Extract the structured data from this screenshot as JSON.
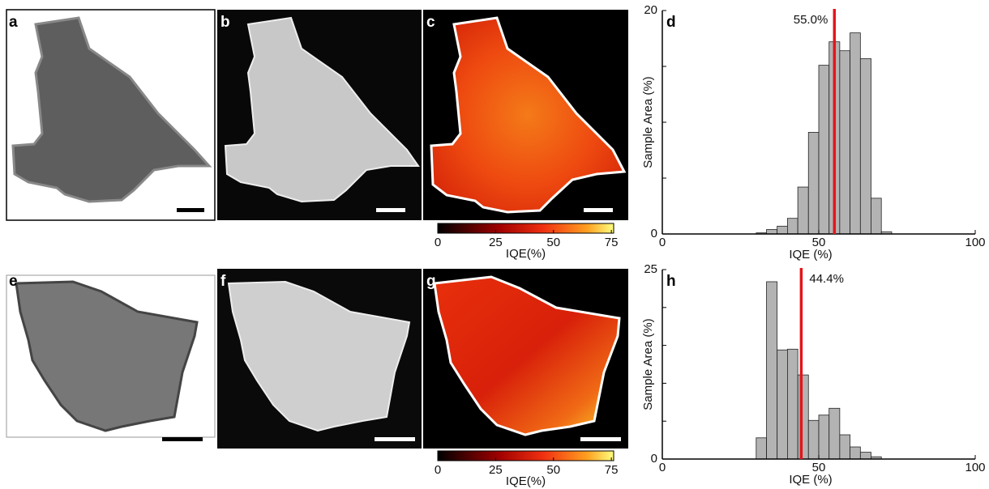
{
  "panels": [
    "a",
    "b",
    "c",
    "d",
    "e",
    "f",
    "g",
    "h"
  ],
  "colorbars": [
    {
      "label": "IQE(%)",
      "lim": [
        0,
        76
      ],
      "ticks": [
        0,
        25,
        50,
        75
      ]
    },
    {
      "label": "IQE(%)",
      "lim": [
        0,
        76
      ],
      "ticks": [
        0,
        25,
        50,
        75
      ]
    }
  ],
  "chart_data": [
    {
      "type": "histogram",
      "xlabel": "IQE (%)",
      "ylabel": "Sample Area (%)",
      "color": "#b3b3b3",
      "bins": [
        30,
        33.3,
        36.7,
        40,
        43.3,
        46.7,
        50,
        53.3,
        56.7,
        60,
        63.3,
        66.7,
        70,
        73.3
      ],
      "counts": [
        0.1,
        0.4,
        0.7,
        1.4,
        4.2,
        9.1,
        15.1,
        17.2,
        16.4,
        18.0,
        15.7,
        3.2,
        0.2
      ],
      "xlim": [
        0,
        100
      ],
      "xticks": [
        0,
        50,
        100
      ],
      "ylim": [
        0,
        20
      ],
      "yticks": [
        0,
        20
      ],
      "minor_yticks": [
        5,
        10,
        15
      ],
      "marker": {
        "value": 55.0,
        "label": "55.0%",
        "color": "#e3161b"
      }
    },
    {
      "type": "histogram",
      "xlabel": "IQE (%)",
      "ylabel": "Sample Area (%)",
      "color": "#b3b3b3",
      "bins": [
        30,
        33.3,
        36.7,
        40,
        43.3,
        46.7,
        50,
        53.3,
        56.7,
        60,
        63.3,
        66.7,
        70
      ],
      "counts": [
        2.8,
        23.4,
        14.4,
        14.5,
        11.1,
        5.1,
        5.8,
        6.7,
        3.2,
        1.6,
        0.9,
        0.3
      ],
      "xlim": [
        0,
        100
      ],
      "xticks": [
        0,
        50,
        100
      ],
      "ylim": [
        0,
        25
      ],
      "yticks": [
        0,
        25
      ],
      "minor_yticks": [
        5,
        10,
        15,
        20
      ],
      "marker": {
        "value": 44.4,
        "label": "44.4%",
        "color": "#e3161b"
      }
    }
  ]
}
